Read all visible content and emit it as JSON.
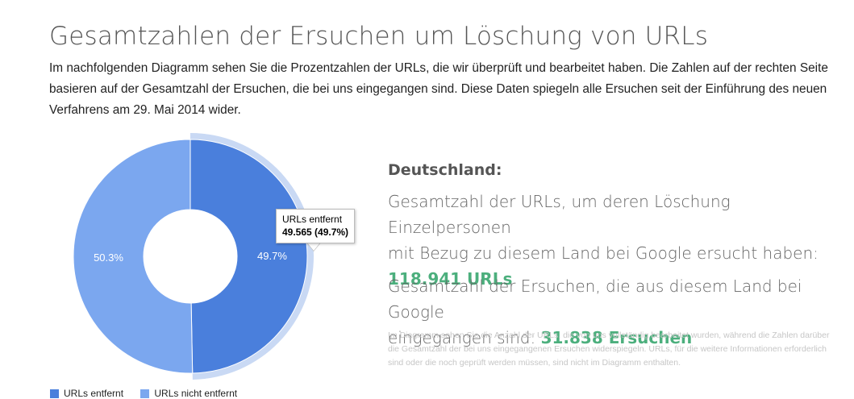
{
  "page": {
    "title": "Gesamtzahlen der Ersuchen um Löschung von URLs",
    "intro": "Im nachfolgenden Diagramm sehen Sie die Prozentzahlen der URLs, die wir überprüft und bearbeitet haben. Die Zahlen auf der rechten Seite basieren auf der Gesamtzahl der Ersuchen, die bei uns eingegangen sind. Diese Daten spiegeln alle Ersuchen seit der Einführung des neuen Verfahrens am 29. Mai 2014 wider."
  },
  "chart_data": {
    "type": "pie",
    "donut": true,
    "categories": [
      "URLs entfernt",
      "URLs nicht entfernt"
    ],
    "values": [
      49.7,
      50.3
    ],
    "data_labels": [
      "49.7%",
      "50.3%"
    ],
    "colors": [
      "#4a7fdc",
      "#7ba7ef"
    ],
    "highlight_color": "#c9d9f4",
    "highlighted_slice": 0,
    "legend_position": "bottom",
    "tooltip": {
      "title": "URLs entfernt",
      "value": "49.565 (49.7%)"
    }
  },
  "legend": {
    "items": [
      {
        "label": "URLs entfernt",
        "color": "#4a7fdc"
      },
      {
        "label": "URLs nicht entfernt",
        "color": "#7ba7ef"
      }
    ]
  },
  "stats": {
    "country": "Deutschland:",
    "urls_line1": "Gesamtzahl der URLs, um deren Löschung Einzelpersonen",
    "urls_line2": "mit Bezug zu diesem Land bei Google ersucht haben:",
    "urls_value": "118.941 URLs",
    "requests_line1": "Gesamtzahl der Ersuchen, die aus diesem Land bei Google",
    "requests_line2_prefix": "eingegangen sind: ",
    "requests_value": "31.838 Ersuchen",
    "footnote": "Im Diagramm sehen Sie die Anzahl der URLs, die von uns vollständig bearbeitet wurden, während die Zahlen darüber die Gesamtzahl der bei uns eingegangenen Ersuchen widerspiegeln. URLs, für die weitere Informationen erforderlich sind oder die noch geprüft werden müssen, sind nicht im Diagramm enthalten.",
    "value_color": "#4caf7d"
  }
}
